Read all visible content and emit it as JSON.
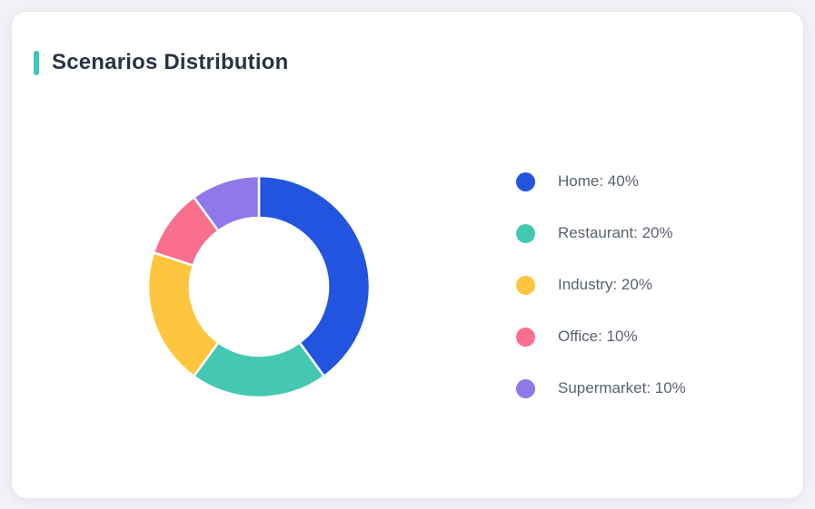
{
  "page": {
    "background_color": "#f0f2f5",
    "card_background_color": "#ffffff"
  },
  "header": {
    "title": "Scenarios Distribution",
    "accent_color": "#3ec6bc",
    "title_color": "#2a3245"
  },
  "chart_data": {
    "type": "pie",
    "title": "Scenarios Distribution",
    "donut": true,
    "start_angle": "top",
    "direction": "clockwise",
    "inner_radius_ratio": 0.62,
    "legend_position": "right",
    "unit": "%",
    "categories": [
      "Home",
      "Restaurant",
      "Industry",
      "Office",
      "Supermarket"
    ],
    "values": [
      40,
      20,
      20,
      10,
      10
    ],
    "colors": [
      "#2254e0",
      "#45c8b2",
      "#fec53e",
      "#fa6e8e",
      "#8f78e7"
    ],
    "segments": [
      {
        "label": "Home",
        "value": 40,
        "color": "#2254e0",
        "legend_text": "Home: 40%"
      },
      {
        "label": "Restaurant",
        "value": 20,
        "color": "#45c8b2",
        "legend_text": "Restaurant: 20%"
      },
      {
        "label": "Industry",
        "value": 20,
        "color": "#fec53e",
        "legend_text": "Industry: 20%"
      },
      {
        "label": "Office",
        "value": 10,
        "color": "#fa6e8e",
        "legend_text": "Office: 10%"
      },
      {
        "label": "Supermarket",
        "value": 10,
        "color": "#8f78e7",
        "legend_text": "Supermarket: 10%"
      }
    ]
  }
}
